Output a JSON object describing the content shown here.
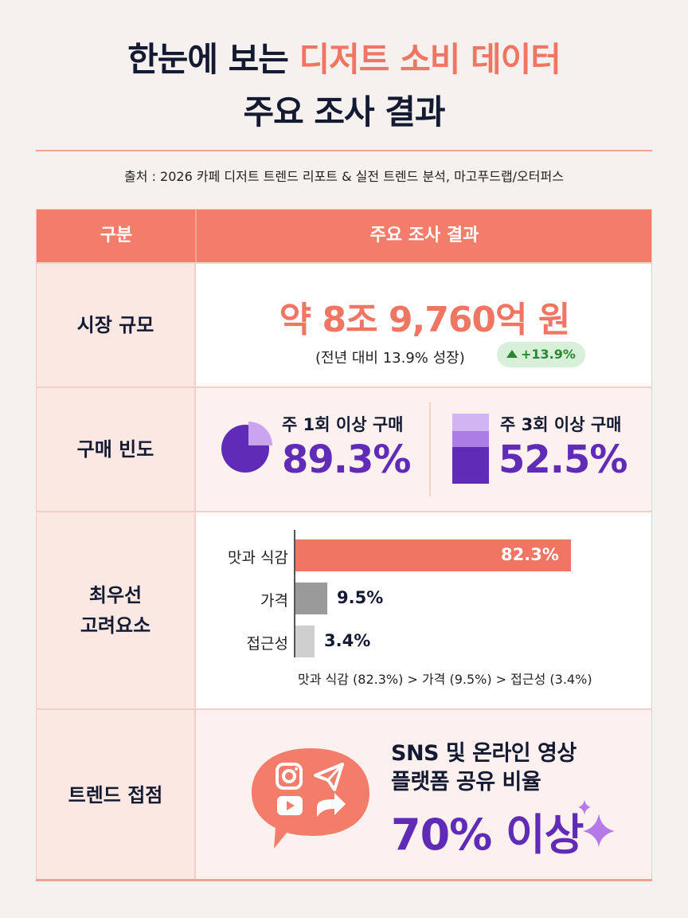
{
  "title": {
    "line1_a": "한눈에 보는 ",
    "line1_b": "디저트 소비 데이터",
    "line2": "주요 조사 결과"
  },
  "source": "출처 : 2026 카페 디저트 트렌드 리포트 & 실전 트렌드 분석, 마고푸드랩/오터퍼스",
  "table": {
    "header": {
      "col1": "구분",
      "col2": "주요 조사 결과"
    },
    "market": {
      "label": "시장 규모",
      "value": "약 8조 9,760억 원",
      "sub": "(전년 대비 13.9% 성장)",
      "badge": "+13.9%",
      "badge_icon": "up-arrow-icon"
    },
    "frequency": {
      "label": "구매 빈도",
      "weekly1": {
        "label": "주 1회 이상 구매",
        "value": "89.3%",
        "percent": 89.3,
        "icon": "pie-chart-icon"
      },
      "weekly3": {
        "label": "주 3회 이상 구매",
        "value": "52.5%",
        "percent": 52.5,
        "icon": "stacked-bar-icon"
      }
    },
    "factors": {
      "label_1": "최우선",
      "label_2": "고려요소",
      "bars": [
        {
          "name": "맛과 식감",
          "value": "82.3%",
          "percent": 82.3
        },
        {
          "name": "가격",
          "value": "9.5%",
          "percent": 9.5
        },
        {
          "name": "접근성",
          "value": "3.4%",
          "percent": 3.4
        }
      ],
      "summary": "맛과 식감 (82.3%) > 가격 (9.5%) > 접근성 (3.4%)"
    },
    "trend": {
      "label": "트렌드 접점",
      "line1": "SNS 및 온라인 영상",
      "line2": "플랫폼 공유 비율",
      "value": "70% 이상",
      "icons": [
        "instagram-icon",
        "send-icon",
        "youtube-icon",
        "share-icon",
        "sparkle-icon"
      ]
    }
  },
  "colors": {
    "accent": "#f07563",
    "header_bg": "#f37c6b",
    "purple": "#5f2bb7",
    "purple_light": "#c9a5ef",
    "green": "#27892e",
    "bar_gray": "#9a9a9a",
    "bar_light": "#cfcfcf"
  }
}
